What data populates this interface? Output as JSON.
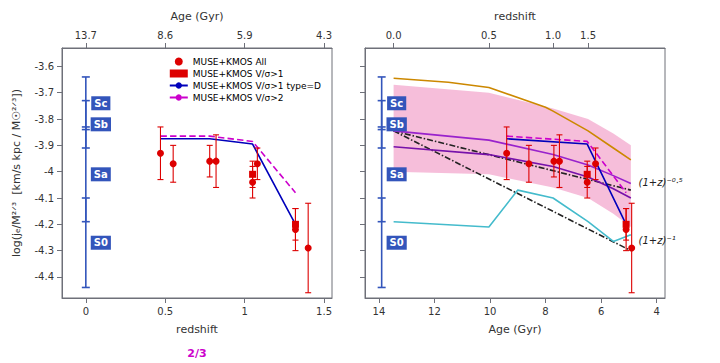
{
  "chart_data": [
    {
      "type": "scatter",
      "xlabel": "redshift",
      "ylabel": "log(jₑ/M²ᐟ³  [km/s kpc / M☉²ᐟ³])",
      "xlim": [
        -0.15,
        1.55
      ],
      "xticks": [
        0,
        0.5,
        1,
        1.5
      ],
      "ylim": [
        -4.48,
        -3.53
      ],
      "yticks": [
        -4.4,
        -4.3,
        -4.2,
        -4.1,
        -4.0,
        -3.9,
        -3.8,
        -3.7,
        -3.6
      ],
      "x2label": "Age (Gyr)",
      "x2lim": [
        -0.15,
        1.55
      ],
      "x2ticks": [
        {
          "value": 0.0,
          "label": "13.7"
        },
        {
          "value": 0.5,
          "label": "8.6"
        },
        {
          "value": 1.0,
          "label": "5.9"
        },
        {
          "value": 1.5,
          "label": "4.3"
        }
      ],
      "grid": false,
      "legend": "upper right",
      "series": [
        {
          "name": "MUSE+KMOS All",
          "type": "scatter",
          "marker": "circle",
          "color": "#dd0000",
          "x": [
            0.47,
            0.55,
            0.78,
            0.82,
            1.05,
            1.08,
            1.32,
            1.4
          ],
          "values": [
            -3.93,
            -3.97,
            -3.96,
            -3.96,
            -4.04,
            -3.97,
            -4.22,
            -4.29
          ],
          "yerr": [
            0.1,
            0.07,
            0.06,
            0.1,
            0.06,
            0.06,
            0.08,
            0.17
          ]
        },
        {
          "name": "MUSE+KMOS V/σ>1",
          "type": "scatter",
          "marker": "square",
          "color": "#dd0000",
          "x": [
            1.05,
            1.32
          ],
          "values": [
            -4.01,
            -4.2
          ],
          "yerr": [
            0.05,
            0.06
          ]
        },
        {
          "name": "MUSE+KMOS V/σ>1 type=D",
          "type": "line",
          "line_style": "solid",
          "color": "#0000bb",
          "x": [
            0.47,
            0.78,
            1.05,
            1.32
          ],
          "values": [
            -3.875,
            -3.875,
            -3.895,
            -4.2
          ]
        },
        {
          "name": "MUSE+KMOS V/σ>2",
          "type": "line",
          "line_style": "dashed",
          "color": "#cc00cc",
          "x": [
            0.47,
            0.78,
            1.05,
            1.32
          ],
          "values": [
            -3.865,
            -3.865,
            -3.885,
            -4.08
          ]
        },
        {
          "type": "errorbar",
          "color": "#3355bb",
          "labels": [
            "Sc",
            "Sb",
            "Sa",
            "S0"
          ],
          "x": [
            0.0,
            0.0,
            0.0,
            0.0
          ],
          "values": [
            -3.74,
            -3.82,
            -4.01,
            -4.27
          ],
          "yerr_lo": [
            0.1,
            0.09,
            0.18,
            0.17
          ],
          "yerr_hi": [
            0.1,
            0.09,
            0.18,
            0.17
          ]
        }
      ],
      "annotations": [
        {
          "text": "2/3",
          "color": "#cc00cc"
        }
      ]
    },
    {
      "type": "scatter",
      "xlabel": "Age (Gyr)",
      "xlim": [
        14.5,
        3.7
      ],
      "xticks": [
        14,
        12,
        10,
        8,
        6,
        4
      ],
      "ylim": [
        -4.48,
        -3.53
      ],
      "yticks": [
        -4.4,
        -4.3,
        -4.2,
        -4.1,
        -4.0,
        -3.9,
        -3.8,
        -3.7,
        -3.6
      ],
      "x2label": "redshift",
      "x2lim": [
        14.5,
        3.7
      ],
      "x2ticks": [
        {
          "value": 13.47,
          "label": "0.0"
        },
        {
          "value": 10.04,
          "label": "0.5"
        },
        {
          "value": 7.73,
          "label": "1.0"
        },
        {
          "value": 6.47,
          "label": "1.5"
        }
      ],
      "grid": false,
      "tick_labels": "x",
      "series": [
        {
          "type": "band",
          "color": "#ee88bb",
          "x": [
            13.47,
            10.04,
            7.73,
            6.47,
            5.56,
            4.93
          ],
          "lower": [
            -4.0,
            -4.01,
            -4.06,
            -4.1,
            -4.16,
            -4.21
          ],
          "upper": [
            -3.67,
            -3.7,
            -3.76,
            -3.8,
            -3.855,
            -3.9
          ]
        },
        {
          "type": "line",
          "line_style": "dashdot",
          "color": "#222222",
          "x": [
            13.47,
            4.93
          ],
          "values": [
            -3.845,
            -4.07
          ]
        },
        {
          "type": "line",
          "line_style": "dashdot",
          "color": "#222222",
          "x": [
            13.47,
            4.93
          ],
          "values": [
            -3.845,
            -4.3
          ]
        },
        {
          "type": "line",
          "line_style": "solid",
          "color": "#cc8800",
          "x": [
            13.47,
            11.5,
            10.04,
            8.0,
            7.73,
            6.47,
            5.56,
            4.93
          ],
          "values": [
            -3.645,
            -3.66,
            -3.68,
            -3.755,
            -3.77,
            -3.845,
            -3.91,
            -3.955
          ]
        },
        {
          "type": "line",
          "line_style": "solid",
          "color": "#9922cc",
          "x": [
            13.47,
            10.04,
            7.73,
            6.47,
            5.56,
            4.93
          ],
          "values": [
            -3.845,
            -3.88,
            -3.935,
            -3.975,
            -4.015,
            -4.045
          ]
        },
        {
          "type": "line",
          "line_style": "solid",
          "color": "#7711aa",
          "x": [
            13.47,
            10.04,
            7.73,
            6.47,
            5.56,
            4.93
          ],
          "values": [
            -3.905,
            -3.935,
            -3.98,
            -4.02,
            -4.065,
            -4.1
          ]
        },
        {
          "type": "line",
          "line_style": "solid",
          "color": "#44bbcc",
          "x": [
            13.47,
            10.04,
            9.0,
            7.73,
            6.47,
            5.56,
            4.93
          ],
          "values": [
            -4.19,
            -4.21,
            -4.07,
            -4.1,
            -4.19,
            -4.265,
            -4.24
          ]
        },
        {
          "type": "line",
          "line_style": "solid",
          "color": "#0000bb",
          "x": [
            9.4,
            6.5,
            5.1
          ],
          "values": [
            -3.875,
            -3.895,
            -4.2
          ]
        },
        {
          "type": "line",
          "line_style": "dashed",
          "color": "#cc00cc",
          "x": [
            9.4,
            6.5,
            5.1
          ],
          "values": [
            -3.865,
            -3.885,
            -4.08
          ]
        },
        {
          "type": "scatter",
          "marker": "circle",
          "color": "#dd0000",
          "x": [
            9.4,
            8.6,
            7.7,
            7.5,
            6.5,
            6.2,
            5.1,
            4.9
          ],
          "values": [
            -3.93,
            -3.97,
            -3.96,
            -3.96,
            -4.04,
            -3.97,
            -4.22,
            -4.29
          ],
          "yerr": [
            0.1,
            0.07,
            0.06,
            0.1,
            0.06,
            0.06,
            0.08,
            0.17
          ]
        },
        {
          "type": "scatter",
          "marker": "square",
          "color": "#dd0000",
          "x": [
            6.5,
            5.1
          ],
          "values": [
            -4.01,
            -4.2
          ],
          "yerr": [
            0.05,
            0.06
          ]
        },
        {
          "type": "errorbar",
          "color": "#3355bb",
          "labels": [
            "Sc",
            "Sb",
            "Sa",
            "S0"
          ],
          "x": [
            13.9,
            13.9,
            13.9,
            13.9
          ],
          "values": [
            -3.74,
            -3.82,
            -4.01,
            -4.27
          ],
          "yerr_lo": [
            0.1,
            0.09,
            0.18,
            0.17
          ],
          "yerr_hi": [
            0.1,
            0.09,
            0.18,
            0.17
          ]
        }
      ],
      "annotations": [
        {
          "text": "(1+z)⁻⁰⋅⁵",
          "x": 4.65,
          "y": -4.04,
          "color": "#222222"
        },
        {
          "text": "(1+z)⁻¹",
          "x": 4.65,
          "y": -4.26,
          "color": "#222222"
        }
      ]
    }
  ]
}
